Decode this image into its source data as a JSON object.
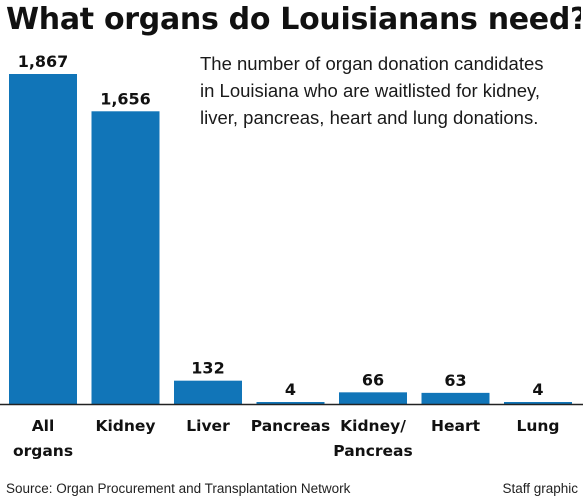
{
  "title": "What organs do Louisianans need?",
  "subtitle_lines": [
    "The number of organ donation candidates",
    "in Louisiana who are waitlisted for kidney,",
    "liver, pancreas, heart and lung donations."
  ],
  "source": "Source: Organ Procurement and Transplantation Network",
  "credit": "Staff graphic",
  "colors": {
    "bar": "#1175b8",
    "axis": "#222222",
    "text": "#111111"
  },
  "chart_data": {
    "type": "bar",
    "categories": [
      [
        "All",
        "organs"
      ],
      [
        "Kidney"
      ],
      [
        "Liver"
      ],
      [
        "Pancreas"
      ],
      [
        "Kidney/",
        "Pancreas"
      ],
      [
        "Heart"
      ],
      [
        "Lung"
      ]
    ],
    "values": [
      1867,
      1656,
      132,
      4,
      66,
      63,
      4
    ],
    "value_labels": [
      "1,867",
      "1,656",
      "132",
      "4",
      "66",
      "63",
      "4"
    ],
    "ylim": [
      0,
      1867
    ],
    "grid": false,
    "legend": "none"
  }
}
